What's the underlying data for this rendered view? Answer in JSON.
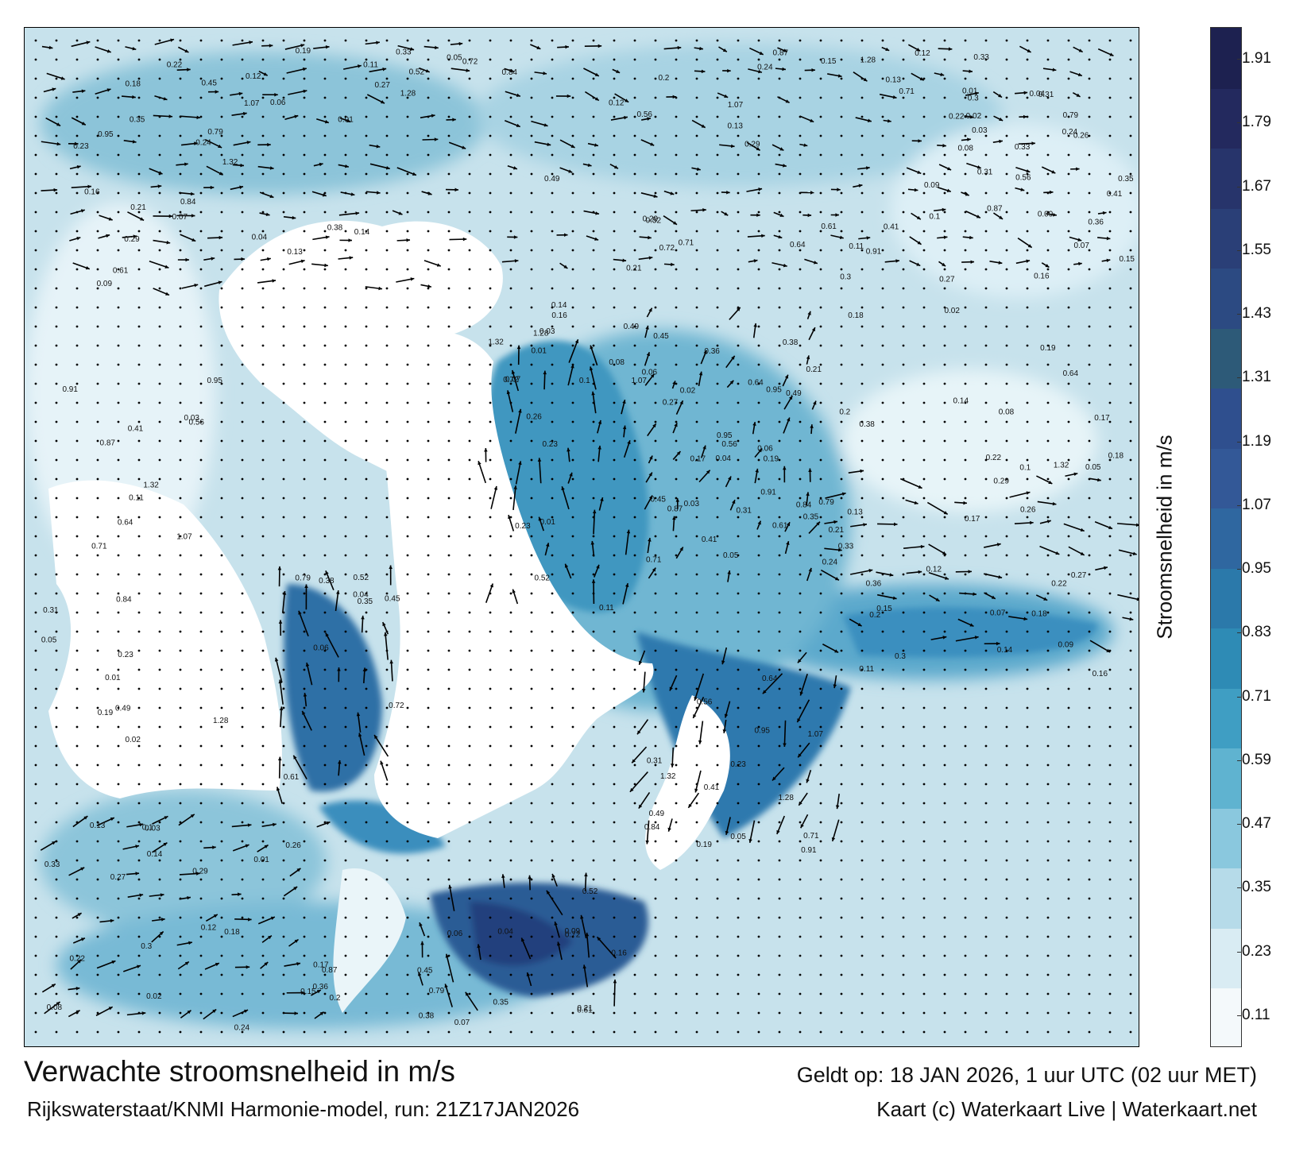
{
  "title": "Verwachte stroomsnelheid in m/s",
  "subtitle": "Rijkswaterstaat/KNMI Harmonie-model, run: 21Z17JAN2026",
  "valid_time": "Geldt op: 18 JAN 2026, 1 uur UTC (02 uur MET)",
  "credit": "Kaart (c) Waterkaart Live | Waterkaart.net",
  "colorbar": {
    "label": "Stroomsnelheid in m/s",
    "ticks": [
      "0.11",
      "0.23",
      "0.35",
      "0.47",
      "0.59",
      "0.71",
      "0.83",
      "0.95",
      "1.07",
      "1.19",
      "1.31",
      "1.43",
      "1.55",
      "1.67",
      "1.79",
      "1.91"
    ],
    "min": 0.05,
    "max": 1.97,
    "colors": [
      "#f4f9fb",
      "#d9ecf3",
      "#b6dbe9",
      "#8ac8de",
      "#5fb3d0",
      "#3f9ec3",
      "#2e8bb5",
      "#2b79aa",
      "#2f67a0",
      "#335897",
      "#2f4f8e",
      "#2d5a78",
      "#2c4a82",
      "#2a3f77",
      "#27346b",
      "#23295e",
      "#1d2150"
    ]
  },
  "sample_values": [
    "0.12",
    "0.24",
    "0.29",
    "0.14",
    "0.13",
    "0.22",
    "0.18",
    "0.27",
    "0.33",
    "0.21",
    "0.07",
    "0.09",
    "0.16",
    "0.04",
    "0.06",
    "0.35",
    "0.38",
    "0.45",
    "0.52",
    "0.61",
    "0.72",
    "0.79",
    "0.84",
    "0.91",
    "0.95",
    "1.07",
    "1.28",
    "1.32",
    "0.05",
    "0.11",
    "0.19",
    "0.23",
    "0.31",
    "0.41",
    "0.49",
    "0.56",
    "0.64",
    "0.71",
    "0.87",
    "0.02",
    "0.01",
    "0.03",
    "0.08",
    "0.1",
    "0.15",
    "0.17",
    "0.2",
    "0.26",
    "0.3",
    "0.36"
  ]
}
